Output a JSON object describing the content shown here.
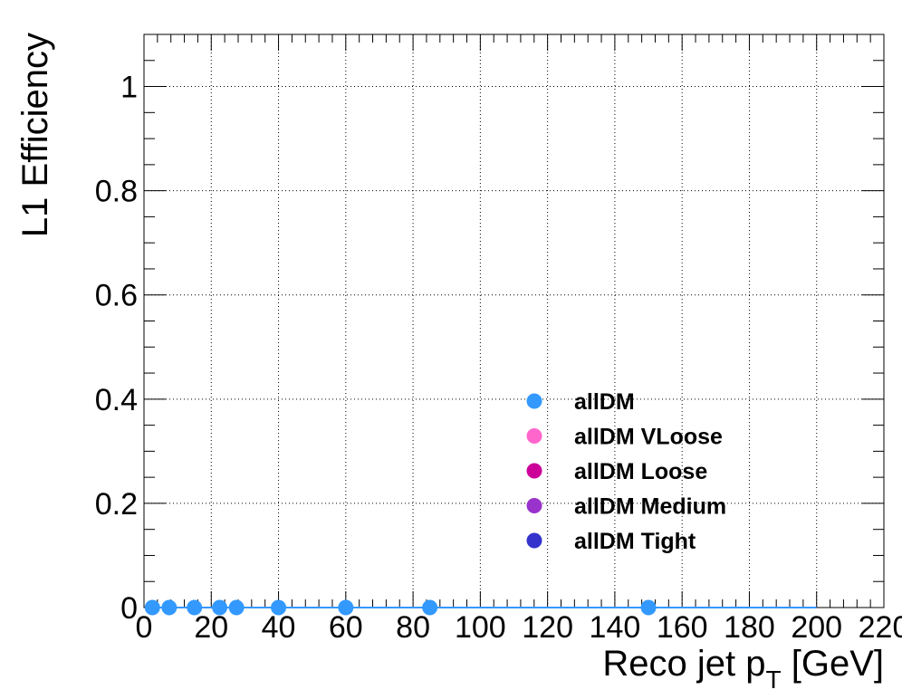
{
  "chart_data": {
    "type": "scatter",
    "title": "",
    "xlabel": "Reco jet  p",
    "xlabel_sub": "T",
    "xlabel_unit": " [GeV]",
    "ylabel": "L1 Efficiency",
    "xlim": [
      0,
      220
    ],
    "ylim": [
      0,
      1.1
    ],
    "x_ticks": [
      0,
      20,
      40,
      60,
      80,
      100,
      120,
      140,
      160,
      180,
      200,
      220
    ],
    "y_ticks": [
      0,
      0.2,
      0.4,
      0.6,
      0.8,
      1
    ],
    "y_tick_labels": [
      "0",
      "0.2",
      "0.4",
      "0.6",
      "0.8",
      "1"
    ],
    "grid": true,
    "legend_position": "lower-right",
    "series": [
      {
        "name": "allDM",
        "color": "#3399ff",
        "x": [
          2.5,
          7.5,
          15,
          22.5,
          27.5,
          40,
          60,
          85,
          150
        ],
        "y": [
          0,
          0,
          0,
          0,
          0,
          0,
          0,
          0,
          0
        ],
        "line_to_x": 200
      },
      {
        "name": "allDM VLoose",
        "color": "#ff66cc",
        "x": [],
        "y": []
      },
      {
        "name": "allDM Loose",
        "color": "#cc0099",
        "x": [],
        "y": []
      },
      {
        "name": "allDM Medium",
        "color": "#9933cc",
        "x": [],
        "y": []
      },
      {
        "name": "allDM Tight",
        "color": "#3333cc",
        "x": [],
        "y": []
      }
    ]
  }
}
